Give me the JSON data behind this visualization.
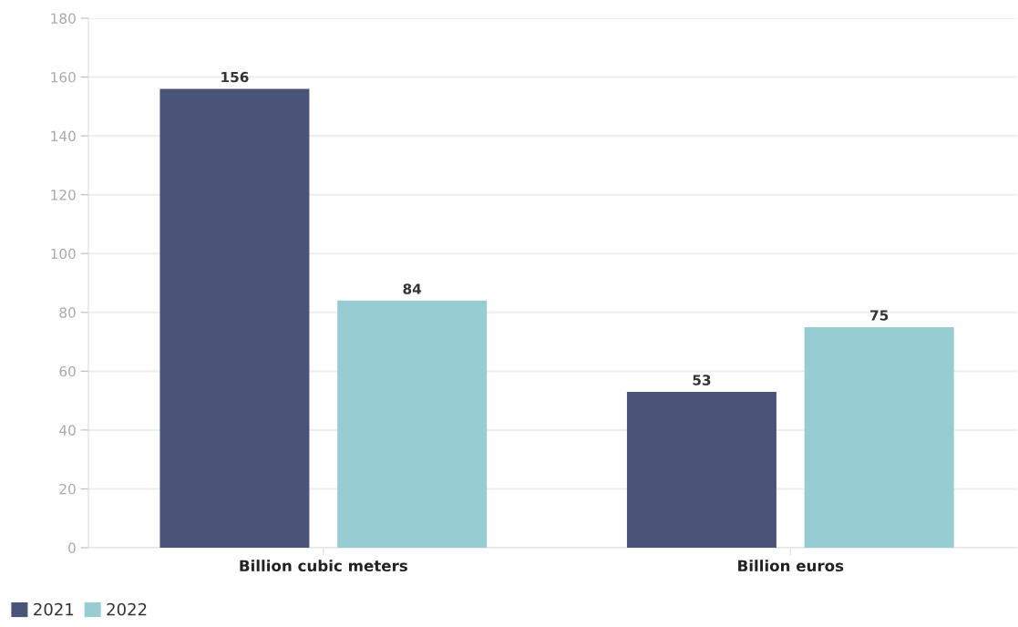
{
  "chart_data": {
    "type": "bar",
    "categories": [
      "Billion cubic meters",
      "Billion euros"
    ],
    "series": [
      {
        "name": "2021",
        "color": "#4a5478",
        "values": [
          156,
          53
        ]
      },
      {
        "name": "2022",
        "color": "#97ccd3",
        "values": [
          84,
          75
        ]
      }
    ],
    "ylim": [
      0,
      180
    ],
    "yticks": [
      0,
      20,
      40,
      60,
      80,
      100,
      120,
      140,
      160,
      180
    ],
    "grid": "y",
    "legend": "bottom left",
    "data_labels": true
  }
}
